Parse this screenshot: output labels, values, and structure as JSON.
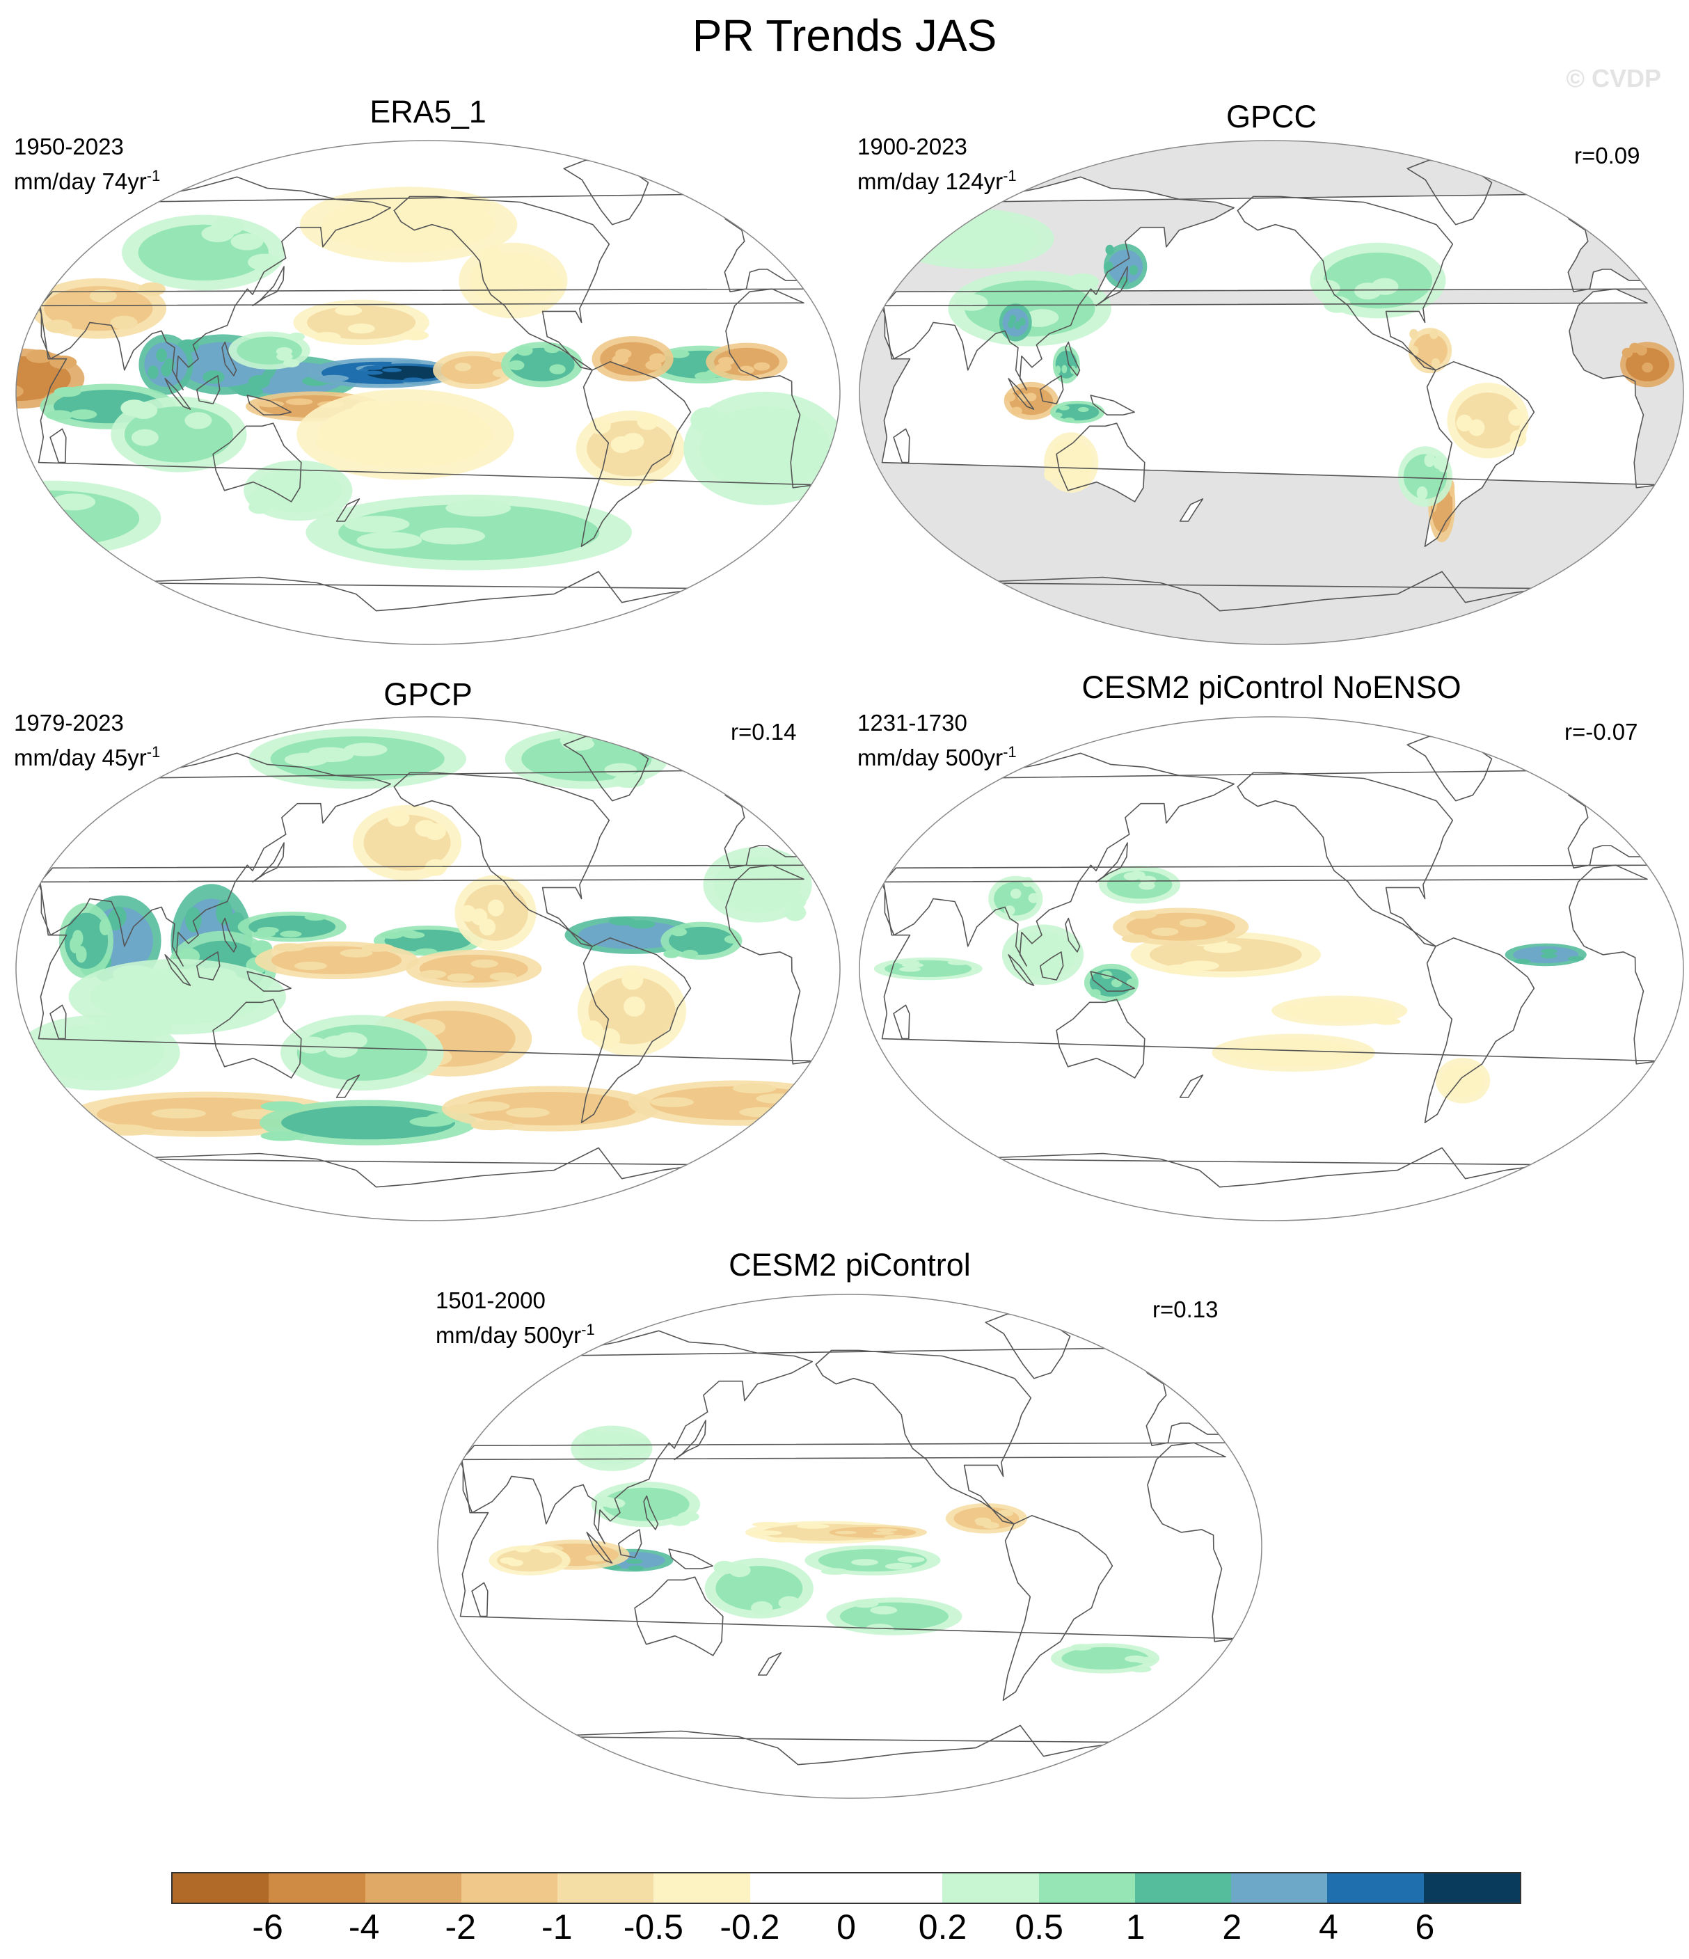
{
  "title": "PR Trends JAS",
  "watermark": "© CVDP",
  "panels": [
    {
      "title": "ERA5_1",
      "period": "1950-2023",
      "units_prefix": "mm/day 74yr",
      "units_exp": "-1",
      "corr": "",
      "land_only": false,
      "pattern": "era5"
    },
    {
      "title": "GPCC",
      "period": "1900-2023",
      "units_prefix": "mm/day 124yr",
      "units_exp": "-1",
      "corr": "r=0.09",
      "land_only": true,
      "pattern": "gpcc"
    },
    {
      "title": "GPCP",
      "period": "1979-2023",
      "units_prefix": "mm/day 45yr",
      "units_exp": "-1",
      "corr": "r=0.14",
      "land_only": false,
      "pattern": "gpcp"
    },
    {
      "title": "CESM2 piControl NoENSO",
      "period": "1231-1730",
      "units_prefix": "mm/day 500yr",
      "units_exp": "-1",
      "corr": "r=-0.07",
      "land_only": false,
      "pattern": "noenso"
    },
    {
      "title": "CESM2 piControl",
      "period": "1501-2000",
      "units_prefix": "mm/day 500yr",
      "units_exp": "-1",
      "corr": "r=0.13",
      "land_only": false,
      "pattern": "picontrol"
    }
  ],
  "colorbar": {
    "labels": [
      "-6",
      "-4",
      "-2",
      "-1",
      "-0.5",
      "-0.2",
      "0",
      "0.2",
      "0.5",
      "1",
      "2",
      "4",
      "6"
    ],
    "colors": [
      "#b26a29",
      "#cf8b44",
      "#e1a966",
      "#f0c98a",
      "#f5dea6",
      "#fcf2c2",
      "#ffffff",
      "#ffffff",
      "#c8f5d2",
      "#96e6b5",
      "#55bd9b",
      "#6ea8c8",
      "#1f6fae",
      "#083b5c"
    ]
  },
  "missing_color": "#e3e3e3",
  "coast_color": "#555555"
}
